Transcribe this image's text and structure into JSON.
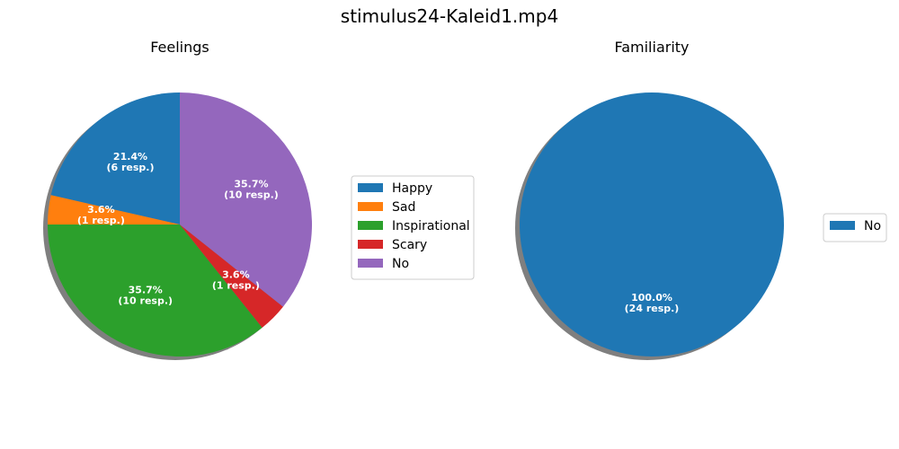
{
  "figure_title": "stimulus24-Kaleid1.mp4",
  "chart_data": [
    {
      "type": "pie",
      "title": "Feelings",
      "slices": [
        {
          "label": "Happy",
          "value": 6,
          "percent_label": "21.4%",
          "resp_label": "(6 resp.)",
          "color": "#1f77b4"
        },
        {
          "label": "Sad",
          "value": 1,
          "percent_label": "3.6%",
          "resp_label": "(1 resp.)",
          "color": "#ff7f0e"
        },
        {
          "label": "Inspirational",
          "value": 10,
          "percent_label": "35.7%",
          "resp_label": "(10 resp.)",
          "color": "#2ca02c"
        },
        {
          "label": "Scary",
          "value": 1,
          "percent_label": "3.6%",
          "resp_label": "(1 resp.)",
          "color": "#d62728"
        },
        {
          "label": "No",
          "value": 10,
          "percent_label": "35.7%",
          "resp_label": "(10 resp.)",
          "color": "#9467bd"
        }
      ],
      "start_angle_deg": 90,
      "direction": "counterclockwise",
      "shadow": true,
      "legend_placement": "right"
    },
    {
      "type": "pie",
      "title": "Familiarity",
      "slices": [
        {
          "label": "No",
          "value": 24,
          "percent_label": "100.0%",
          "resp_label": "(24 resp.)",
          "color": "#1f77b4"
        }
      ],
      "start_angle_deg": 90,
      "direction": "counterclockwise",
      "shadow": true,
      "legend_placement": "right"
    }
  ]
}
